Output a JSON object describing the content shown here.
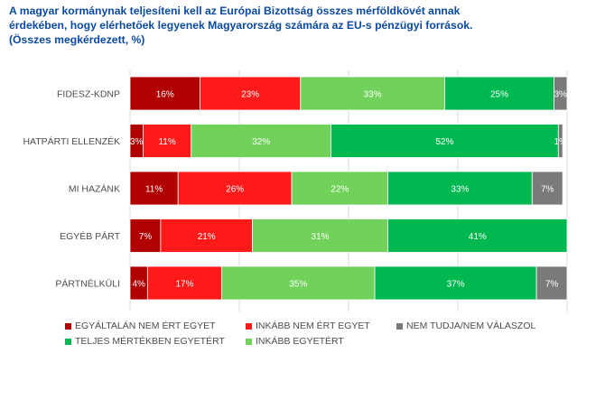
{
  "title_lines": [
    "A magyar kormánynak teljesíteni kell az Európai Bizottság összes mérföldkövét annak",
    "érdekében, hogy elérhetőek legyenek Magyarország számára az EU-s pénzügyi források.",
    "(Összes megkérdezett, %)"
  ],
  "chart_data": {
    "type": "bar",
    "orientation": "horizontal",
    "stacked": true,
    "percent_stacked": true,
    "categories": [
      "FIDESZ-KDNP",
      "HATPÁRTI ELLENZÉK",
      "MI HAZÁNK",
      "EGYÉB PÁRT",
      "PÁRTNÉLKÜLI"
    ],
    "series": [
      {
        "name": "EGYÁLTALÁN NEM ÉRT EGYET",
        "color": "#b00000",
        "values": [
          16,
          3,
          11,
          7,
          4
        ]
      },
      {
        "name": "INKÁBB NEM ÉRT EGYET",
        "color": "#ff1a1a",
        "values": [
          23,
          11,
          26,
          21,
          17
        ]
      },
      {
        "name": "INKÁBB EGYETÉRT",
        "color": "#70d25a",
        "values": [
          33,
          32,
          22,
          31,
          35
        ]
      },
      {
        "name": "TELJES MÉRTÉKBEN EGYETÉRT",
        "color": "#00b850",
        "values": [
          25,
          52,
          33,
          41,
          37
        ]
      },
      {
        "name": "NEM TUDJA/NEM VÁLASZOL",
        "color": "#7a7a7a",
        "values": [
          3,
          1,
          7,
          0,
          7
        ]
      }
    ],
    "xlim": [
      0,
      100
    ],
    "grid": true,
    "legend_position": "bottom"
  }
}
